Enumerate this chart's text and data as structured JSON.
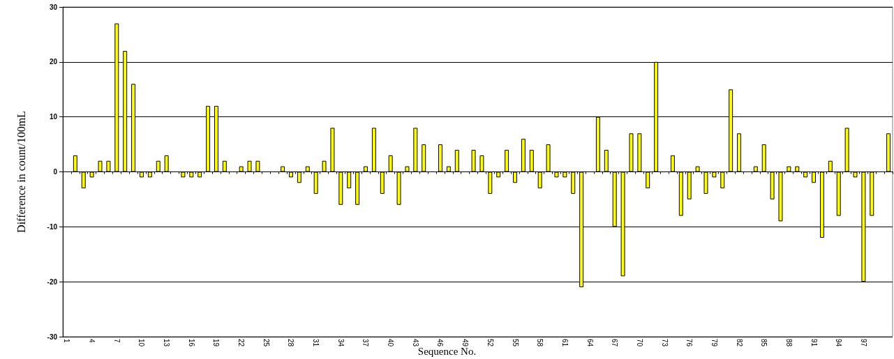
{
  "chart_data": {
    "type": "bar",
    "xlabel": "Sequence No.",
    "ylabel": "Difference in count/100mL",
    "categories": [
      "1",
      null,
      null,
      "4",
      null,
      null,
      "7",
      null,
      null,
      "10",
      null,
      null,
      "13",
      null,
      null,
      "16",
      null,
      null,
      "19",
      null,
      null,
      "22",
      null,
      null,
      "25",
      null,
      null,
      "28",
      null,
      null,
      "31",
      null,
      null,
      "34",
      null,
      null,
      "37",
      null,
      null,
      "40",
      null,
      null,
      "43",
      null,
      null,
      "46",
      null,
      null,
      "49",
      null,
      null,
      "52",
      null,
      null,
      "55",
      null,
      null,
      "58",
      null,
      null,
      "61",
      null,
      null,
      "64",
      null,
      null,
      "67",
      null,
      null,
      "70",
      null,
      null,
      "73",
      null,
      null,
      "76",
      null,
      null,
      "79",
      null,
      null,
      "82",
      null,
      null,
      "85",
      null,
      null,
      "88",
      null,
      null,
      "91",
      null,
      null,
      "94",
      null,
      null,
      "97",
      null,
      null,
      null
    ],
    "values": [
      0,
      3,
      -3,
      -1,
      2,
      2,
      27,
      22,
      16,
      -1,
      -1,
      2,
      3,
      0,
      -1,
      -1,
      -1,
      12,
      12,
      2,
      0,
      1,
      2,
      2,
      0,
      0,
      1,
      -1,
      -2,
      1,
      -4,
      2,
      8,
      -6,
      -3,
      -6,
      1,
      8,
      -4,
      3,
      -6,
      1,
      8,
      5,
      0,
      5,
      1,
      4,
      0,
      4,
      3,
      -4,
      -1,
      4,
      -2,
      6,
      4,
      -3,
      5,
      -1,
      -1,
      -4,
      -21,
      0,
      10,
      4,
      -10,
      -19,
      7,
      7,
      -3,
      20,
      0,
      3,
      -8,
      -5,
      1,
      -4,
      -1,
      -3,
      15,
      7,
      0,
      1,
      5,
      -5,
      -9,
      1,
      1,
      -1,
      -2,
      -12,
      2,
      -8,
      8,
      -1,
      -20,
      -8,
      0,
      7
    ],
    "color": "#ffff00",
    "ylim": [
      -30,
      30
    ],
    "yticks": [
      -30,
      -20,
      -10,
      0,
      10,
      20,
      30
    ],
    "grid": "y"
  }
}
